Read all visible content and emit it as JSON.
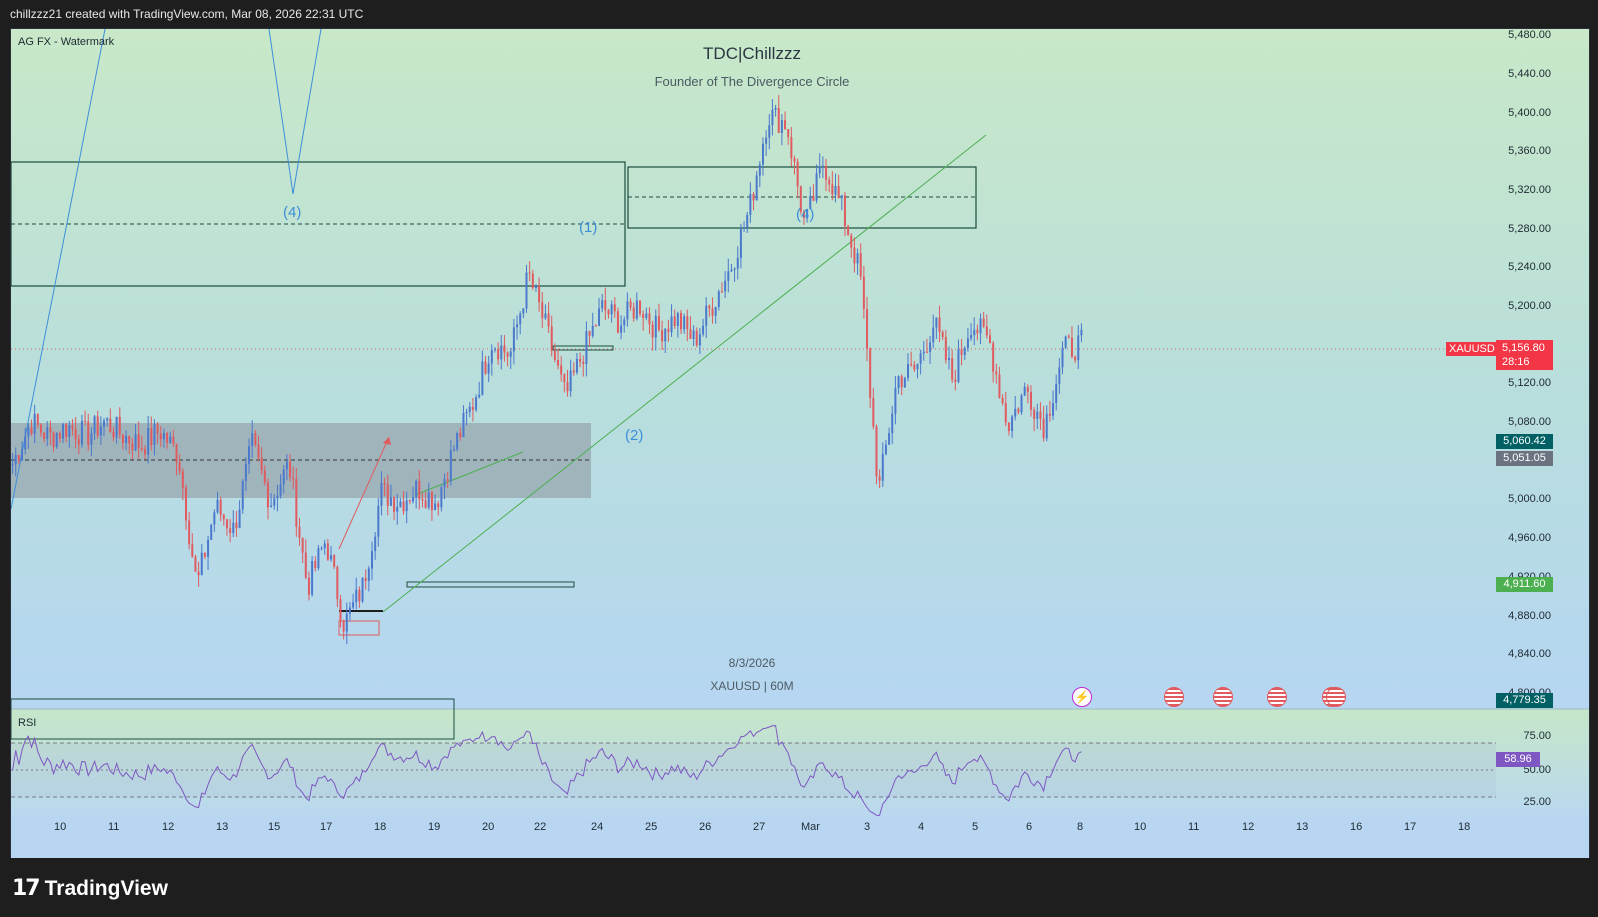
{
  "header": {
    "credit": "chillzzz21 created with TradingView.com, Mar 08, 2026 22:31 UTC"
  },
  "chart_header": {
    "indicator": "AG FX - Watermark",
    "title": "TDC|Chillzzz",
    "subtitle": "Founder of The Divergence Circle",
    "date_stamp": "8/3/2026",
    "symbol_stamp": "XAUUSD | 60M"
  },
  "price_scale": {
    "ticks": [
      "5,480.00",
      "5,440.00",
      "5,400.00",
      "5,360.00",
      "5,320.00",
      "5,280.00",
      "5,240.00",
      "5,200.00",
      "5,120.00",
      "5,080.00",
      "5,000.00",
      "4,960.00",
      "4,880.00",
      "4,840.00"
    ],
    "partial_ticks": [
      "4,920.00",
      "4,800.00"
    ]
  },
  "price_badges": [
    {
      "id": "symbol",
      "text": "XAUUSD",
      "color": "#f23645"
    },
    {
      "id": "last",
      "text": "5,156.80",
      "color": "#f23645"
    },
    {
      "id": "countdown",
      "text": "28:16",
      "color": "#f23645"
    },
    {
      "id": "level1",
      "text": "5,060.42",
      "color": "#006064"
    },
    {
      "id": "level2",
      "text": "5,051.05",
      "color": "#6b7280"
    },
    {
      "id": "level3",
      "text": "4,911.60",
      "color": "#4caf50"
    },
    {
      "id": "level4",
      "text": "4,779.35",
      "color": "#006064"
    }
  ],
  "wave_labels": [
    "(4)",
    "(1)",
    "(4)",
    "(2)"
  ],
  "rsi": {
    "label": "RSI",
    "ticks": [
      "75.00",
      "50.00",
      "25.00"
    ],
    "value": "58.96",
    "value_color": "#7e57c2"
  },
  "time_axis": [
    "10",
    "11",
    "12",
    "13",
    "15",
    "17",
    "18",
    "19",
    "20",
    "22",
    "24",
    "25",
    "26",
    "27",
    "Mar",
    "3",
    "4",
    "5",
    "6",
    "8",
    "10",
    "11",
    "12",
    "13",
    "16",
    "17",
    "18"
  ],
  "icons": [
    "lightning-event-icon",
    "us-flag-event-icon",
    "us-flag-event-icon",
    "us-flag-event-icon",
    "us-flag-event-icon"
  ],
  "footer": {
    "brand": "TradingView"
  },
  "colors": {
    "bull": "#4a78cc",
    "bear": "#e05a5f",
    "trendline": "#4caf50",
    "rsi": "#7e57c2",
    "zone": "#9aa6ad",
    "wave_line": "#3d8fd8"
  },
  "chart_data": {
    "type": "candlestick",
    "symbol": "XAUUSD",
    "interval": "60M",
    "ylim": [
      4779.35,
      5490
    ],
    "last_price": 5156.8,
    "levels": [
      5060.42,
      5051.05,
      4911.6,
      4779.35
    ],
    "x_categories": [
      "10",
      "11",
      "12",
      "13",
      "15",
      "17",
      "18",
      "19",
      "20",
      "22",
      "24",
      "25",
      "26",
      "27",
      "Mar",
      "3",
      "4",
      "5",
      "6",
      "8"
    ],
    "close_path": [
      5030,
      5075,
      5058,
      5070,
      5060,
      5075,
      5060,
      5050,
      5065,
      5040,
      4900,
      4985,
      4960,
      5050,
      4990,
      5030,
      4900,
      4950,
      4860,
      4900,
      5000,
      4990,
      5005,
      4990,
      5050,
      5095,
      5160,
      5145,
      5230,
      5170,
      5100,
      5150,
      5195,
      5180,
      5200,
      5170,
      5185,
      5160,
      5200,
      5240,
      5300,
      5400,
      5390,
      5280,
      5350,
      5300,
      5230,
      5000,
      5120,
      5130,
      5180,
      5120,
      5180,
      5160,
      5070,
      5110,
      5070,
      5150,
      5157
    ],
    "rsi_ylim": [
      0,
      100
    ],
    "rsi_last": 58.96
  }
}
